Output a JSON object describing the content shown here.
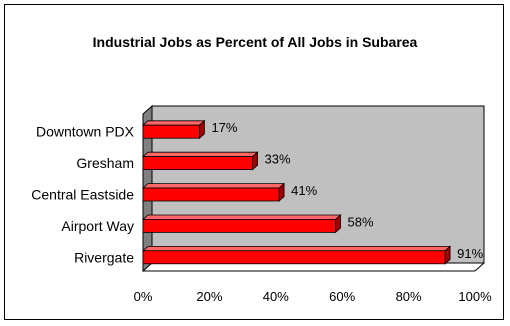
{
  "chart_data": {
    "type": "bar",
    "orientation": "horizontal",
    "style": "3d",
    "title": "Industrial Jobs as Percent of All Jobs in Subarea",
    "categories": [
      "Downtown PDX",
      "Gresham",
      "Central Eastside",
      "Airport Way",
      "Rivergate"
    ],
    "values": [
      17,
      33,
      41,
      58,
      91
    ],
    "value_labels": [
      "17%",
      "33%",
      "41%",
      "58%",
      "91%"
    ],
    "xlim": [
      0,
      100
    ],
    "xticks": [
      "0%",
      "20%",
      "40%",
      "60%",
      "80%",
      "100%"
    ],
    "xlabel": "",
    "ylabel": "",
    "grid": false,
    "legend": "none",
    "colors": {
      "bar": "#ff0000",
      "bar_top": "#ff6666",
      "bar_side": "#a00000",
      "plot_wall": "#c0c0c0",
      "plot_side_wall": "#808080"
    }
  }
}
